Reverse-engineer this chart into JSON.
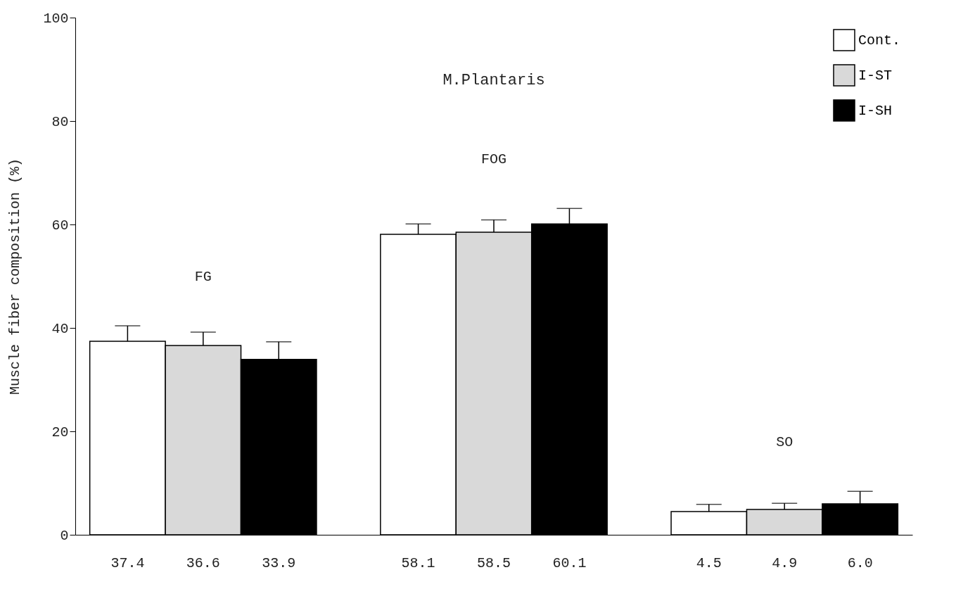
{
  "chart_data": {
    "type": "bar",
    "title": "M.Plantaris",
    "ylabel": "Muscle fiber composition   (%)",
    "categories": [
      "FG",
      "FOG",
      "SO"
    ],
    "series": [
      {
        "name": "Cont.",
        "color": "#ffffff",
        "values": [
          37.4,
          58.1,
          4.5
        ],
        "errors": [
          3,
          2,
          1.4
        ],
        "value_labels": [
          "37.4",
          "58.1",
          "4.5"
        ]
      },
      {
        "name": "I-ST",
        "color": "#d9d9d9",
        "values": [
          36.6,
          58.5,
          4.9
        ],
        "errors": [
          2.6,
          2.4,
          1.2
        ],
        "value_labels": [
          "36.6",
          "58.5",
          "4.9"
        ]
      },
      {
        "name": "I-SH",
        "color": "#000000",
        "values": [
          33.9,
          60.1,
          6.0
        ],
        "errors": [
          3.4,
          3,
          2.4
        ],
        "value_labels": [
          "33.9",
          "60.1",
          "6.0"
        ]
      }
    ],
    "ylim": [
      0,
      100
    ],
    "yticks": [
      0,
      20,
      40,
      60,
      80,
      100
    ],
    "legend": "top right"
  }
}
